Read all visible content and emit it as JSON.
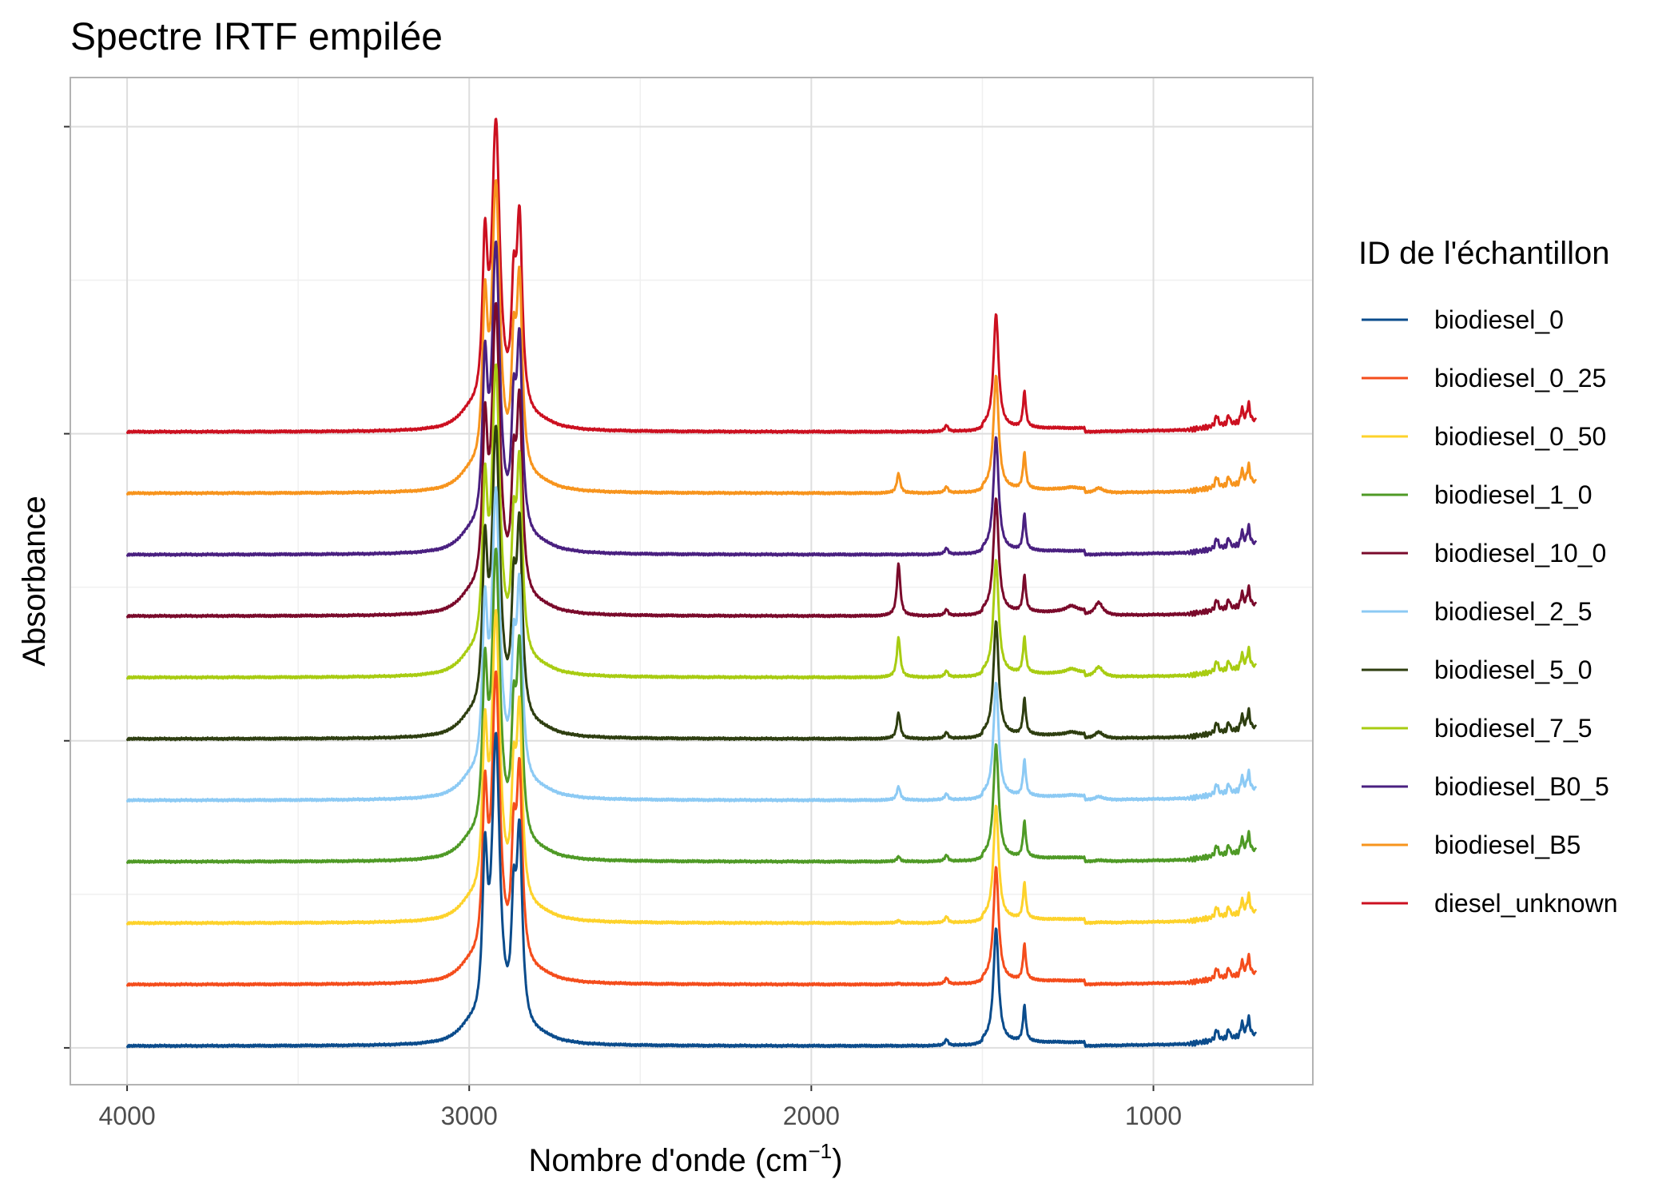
{
  "chart_data": {
    "type": "line",
    "title": "Spectre IRTF empilée",
    "xlabel": "Nombre d'onde (cm",
    "xlabel_superscript": "−1",
    "xlabel_suffix": ")",
    "ylabel": "Absorbance",
    "xlim": [
      4166,
      534
    ],
    "x_reversed": true,
    "ylim": [
      -0.6,
      15.8
    ],
    "x_ticks": [
      4000,
      3000,
      2000,
      1000
    ],
    "x_tick_labels": [
      "4000",
      "3000",
      "2000",
      "1000"
    ],
    "x_minor_grid": [
      3500,
      2500,
      1500
    ],
    "y_major_grid": [
      0,
      5,
      10,
      15
    ],
    "y_minor_grid": [
      2.5,
      7.5,
      12.5
    ],
    "grid": true,
    "legend": {
      "title": "ID de l'échantillon",
      "position": "right",
      "entries": [
        {
          "name": "biodiesel_0",
          "color": "#0b4c8c"
        },
        {
          "name": "biodiesel_0_25",
          "color": "#f44d1c"
        },
        {
          "name": "biodiesel_0_50",
          "color": "#fdd22b"
        },
        {
          "name": "biodiesel_1_0",
          "color": "#4f9a26"
        },
        {
          "name": "biodiesel_10_0",
          "color": "#7a0a2b"
        },
        {
          "name": "biodiesel_2_5",
          "color": "#8ccaf4"
        },
        {
          "name": "biodiesel_5_0",
          "color": "#2e3e10"
        },
        {
          "name": "biodiesel_7_5",
          "color": "#a8cc12"
        },
        {
          "name": "biodiesel_B0_5",
          "color": "#4a2080"
        },
        {
          "name": "biodiesel_B5",
          "color": "#f7941d"
        },
        {
          "name": "diesel_unknown",
          "color": "#cc1020"
        }
      ]
    },
    "series": [
      {
        "name": "biodiesel_0",
        "color": "#0b4c8c",
        "offset": 0.0,
        "ester": 0.0,
        "x": [
          4000,
          3500,
          3100,
          3000,
          2954,
          2922,
          2870,
          2853,
          2800,
          2700,
          2500,
          2000,
          1750,
          1605,
          1500,
          1460,
          1420,
          1377,
          1300,
          1160,
          1000,
          900,
          815,
          780,
          741,
          722,
          700
        ],
        "y": [
          0.02,
          0.01,
          0.03,
          0.28,
          2.73,
          4.84,
          1.92,
          3.29,
          0.2,
          0.07,
          0.03,
          0.03,
          0.03,
          0.14,
          0.14,
          1.96,
          0.13,
          0.66,
          0.18,
          0.18,
          0.18,
          0.27,
          0.43,
          0.37,
          0.48,
          0.55,
          0.3
        ]
      },
      {
        "name": "biodiesel_0_25",
        "color": "#f44d1c",
        "offset": 1.0,
        "ester": 0.02,
        "x": [
          4000,
          3500,
          3100,
          3000,
          2954,
          2922,
          2870,
          2853,
          2800,
          2700,
          2500,
          2000,
          1745,
          1605,
          1500,
          1460,
          1420,
          1377,
          1300,
          1160,
          1000,
          900,
          815,
          780,
          741,
          722,
          700
        ],
        "y": [
          0.02,
          0.01,
          0.03,
          0.28,
          2.73,
          4.84,
          1.92,
          3.29,
          0.2,
          0.07,
          0.03,
          0.03,
          0.04,
          0.14,
          0.14,
          1.96,
          0.13,
          0.66,
          0.18,
          0.18,
          0.18,
          0.27,
          0.43,
          0.37,
          0.48,
          0.55,
          0.3
        ]
      },
      {
        "name": "biodiesel_0_50",
        "color": "#fdd22b",
        "offset": 2.0,
        "ester": 0.04,
        "x": [
          4000,
          3500,
          3100,
          3000,
          2954,
          2922,
          2870,
          2853,
          2800,
          2700,
          2500,
          2000,
          1745,
          1605,
          1500,
          1460,
          1420,
          1377,
          1300,
          1160,
          1000,
          900,
          815,
          780,
          741,
          722,
          700
        ],
        "y": [
          0.02,
          0.01,
          0.03,
          0.28,
          2.73,
          4.84,
          1.92,
          3.29,
          0.2,
          0.07,
          0.03,
          0.03,
          0.05,
          0.14,
          0.14,
          1.96,
          0.13,
          0.66,
          0.18,
          0.18,
          0.18,
          0.27,
          0.43,
          0.37,
          0.48,
          0.55,
          0.3
        ]
      },
      {
        "name": "biodiesel_1_0",
        "color": "#4f9a26",
        "offset": 3.0,
        "ester": 0.08,
        "x": [
          4000,
          3500,
          3100,
          3000,
          2954,
          2922,
          2870,
          2853,
          2800,
          2700,
          2500,
          2000,
          1745,
          1605,
          1500,
          1460,
          1420,
          1377,
          1300,
          1160,
          1000,
          900,
          815,
          780,
          741,
          722,
          700
        ],
        "y": [
          0.02,
          0.01,
          0.03,
          0.28,
          2.73,
          4.84,
          1.92,
          3.29,
          0.2,
          0.07,
          0.03,
          0.03,
          0.12,
          0.14,
          0.14,
          1.96,
          0.13,
          0.66,
          0.18,
          0.18,
          0.18,
          0.27,
          0.43,
          0.37,
          0.48,
          0.55,
          0.3
        ]
      },
      {
        "name": "biodiesel_2_5",
        "color": "#8ccaf4",
        "offset": 4.0,
        "ester": 0.22,
        "x": [
          4000,
          3500,
          3100,
          3000,
          2954,
          2922,
          2870,
          2853,
          2800,
          2700,
          2500,
          2000,
          1745,
          1605,
          1500,
          1460,
          1420,
          1377,
          1300,
          1160,
          1000,
          900,
          815,
          780,
          741,
          722,
          700
        ],
        "y": [
          0.02,
          0.01,
          0.03,
          0.28,
          2.73,
          4.84,
          1.92,
          3.29,
          0.2,
          0.07,
          0.03,
          0.03,
          0.24,
          0.14,
          0.14,
          1.96,
          0.13,
          0.66,
          0.18,
          0.2,
          0.18,
          0.27,
          0.43,
          0.37,
          0.48,
          0.55,
          0.3
        ]
      },
      {
        "name": "biodiesel_5_0",
        "color": "#2e3e10",
        "offset": 5.0,
        "ester": 0.42,
        "x": [
          4000,
          3500,
          3100,
          3000,
          2954,
          2922,
          2870,
          2853,
          2800,
          2700,
          2500,
          2000,
          1745,
          1605,
          1500,
          1460,
          1420,
          1377,
          1300,
          1160,
          1000,
          900,
          815,
          780,
          741,
          722,
          700
        ],
        "y": [
          0.02,
          0.01,
          0.03,
          0.28,
          2.73,
          4.84,
          1.92,
          3.29,
          0.2,
          0.07,
          0.03,
          0.03,
          0.46,
          0.14,
          0.14,
          1.96,
          0.13,
          0.66,
          0.18,
          0.26,
          0.18,
          0.27,
          0.43,
          0.37,
          0.48,
          0.55,
          0.3
        ]
      },
      {
        "name": "biodiesel_7_5",
        "color": "#a8cc12",
        "offset": 6.0,
        "ester": 0.65,
        "x": [
          4000,
          3500,
          3100,
          3000,
          2954,
          2922,
          2870,
          2853,
          2800,
          2700,
          2500,
          2000,
          1745,
          1605,
          1500,
          1460,
          1420,
          1377,
          1300,
          1160,
          1000,
          900,
          815,
          780,
          741,
          722,
          700
        ],
        "y": [
          0.02,
          0.01,
          0.03,
          0.28,
          2.73,
          4.84,
          1.92,
          3.29,
          0.2,
          0.07,
          0.03,
          0.03,
          0.7,
          0.14,
          0.14,
          1.96,
          0.13,
          0.66,
          0.18,
          0.34,
          0.18,
          0.27,
          0.43,
          0.37,
          0.48,
          0.55,
          0.3
        ]
      },
      {
        "name": "biodiesel_10_0",
        "color": "#7a0a2b",
        "offset": 7.0,
        "ester": 0.85,
        "x": [
          4000,
          3500,
          3100,
          3000,
          2954,
          2922,
          2870,
          2853,
          2800,
          2700,
          2500,
          2000,
          1745,
          1605,
          1500,
          1460,
          1420,
          1377,
          1300,
          1160,
          1000,
          900,
          815,
          780,
          741,
          722,
          700
        ],
        "y": [
          0.02,
          0.01,
          0.03,
          0.28,
          2.73,
          4.84,
          1.92,
          3.29,
          0.2,
          0.07,
          0.03,
          0.03,
          0.92,
          0.14,
          0.14,
          1.96,
          0.13,
          0.66,
          0.18,
          0.42,
          0.18,
          0.27,
          0.43,
          0.37,
          0.48,
          0.55,
          0.3
        ]
      },
      {
        "name": "biodiesel_B0_5",
        "color": "#4a2080",
        "offset": 8.0,
        "ester": 0.0,
        "x": [
          4000,
          3500,
          3100,
          3000,
          2954,
          2922,
          2870,
          2853,
          2800,
          2700,
          2500,
          2000,
          1750,
          1605,
          1500,
          1460,
          1420,
          1377,
          1300,
          1160,
          1000,
          900,
          815,
          780,
          741,
          722,
          700
        ],
        "y": [
          0.02,
          0.01,
          0.03,
          0.28,
          2.73,
          4.84,
          1.92,
          3.29,
          0.2,
          0.07,
          0.03,
          0.03,
          0.03,
          0.14,
          0.14,
          1.96,
          0.13,
          0.66,
          0.18,
          0.18,
          0.18,
          0.27,
          0.43,
          0.37,
          0.48,
          0.55,
          0.3
        ]
      },
      {
        "name": "biodiesel_B5",
        "color": "#f7941d",
        "offset": 9.0,
        "ester": 0.32,
        "x": [
          4000,
          3500,
          3100,
          3000,
          2954,
          2922,
          2870,
          2853,
          2800,
          2700,
          2500,
          2000,
          1745,
          1605,
          1500,
          1460,
          1420,
          1377,
          1300,
          1160,
          1000,
          900,
          815,
          780,
          741,
          722,
          700
        ],
        "y": [
          0.02,
          0.01,
          0.03,
          0.28,
          2.73,
          4.84,
          1.92,
          3.29,
          0.2,
          0.07,
          0.03,
          0.03,
          0.34,
          0.14,
          0.14,
          1.96,
          0.13,
          0.66,
          0.18,
          0.24,
          0.18,
          0.27,
          0.43,
          0.37,
          0.48,
          0.55,
          0.3
        ]
      },
      {
        "name": "diesel_unknown",
        "color": "#cc1020",
        "offset": 10.0,
        "ester": 0.0,
        "x": [
          4000,
          3500,
          3100,
          3000,
          2954,
          2922,
          2870,
          2853,
          2800,
          2700,
          2500,
          2000,
          1750,
          1605,
          1500,
          1460,
          1420,
          1377,
          1300,
          1160,
          1000,
          900,
          815,
          780,
          741,
          722,
          700
        ],
        "y": [
          0.02,
          0.01,
          0.03,
          0.28,
          2.73,
          4.84,
          1.92,
          3.29,
          0.2,
          0.07,
          0.03,
          0.03,
          0.03,
          0.14,
          0.14,
          1.96,
          0.13,
          0.66,
          0.18,
          0.18,
          0.18,
          0.27,
          0.43,
          0.37,
          0.48,
          0.55,
          0.3
        ]
      }
    ]
  }
}
